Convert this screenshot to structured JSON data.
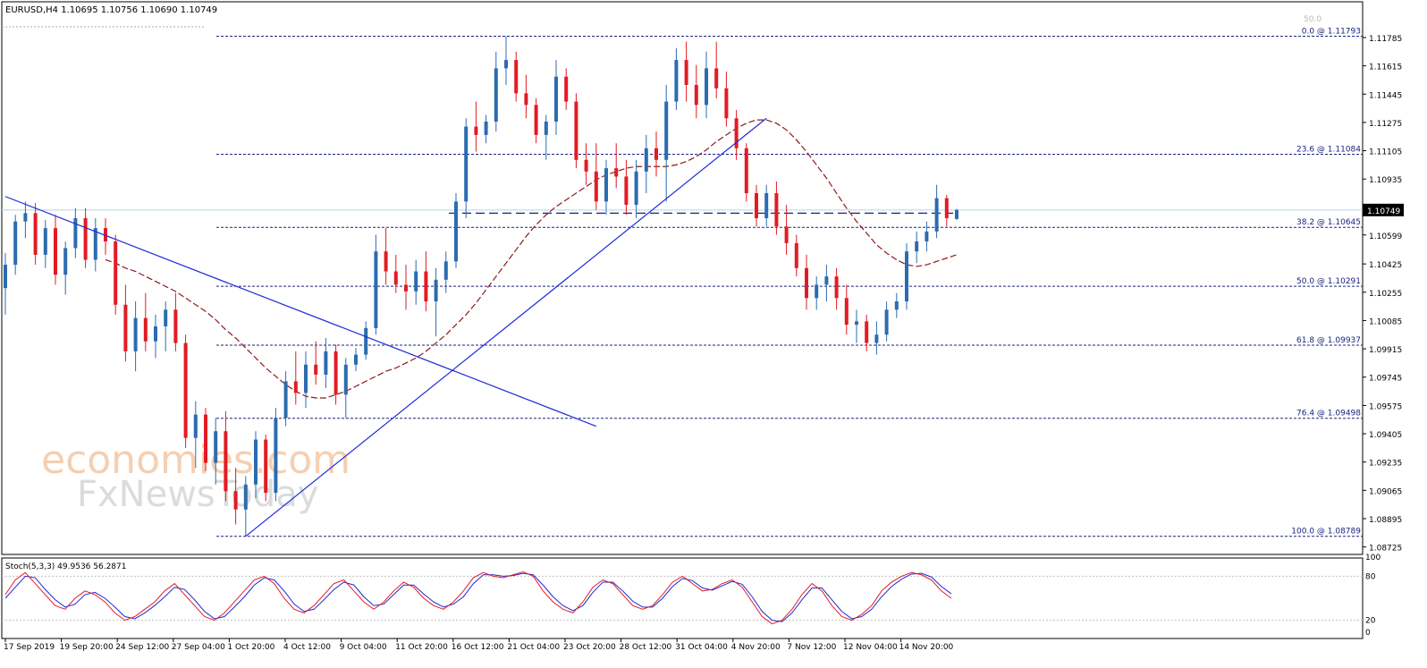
{
  "header": {
    "symbol": "EURUSD,H4",
    "ohlc": "1.10695 1.10756 1.10690 1.10749"
  },
  "watermark": {
    "line1": "economies.com",
    "line2": "FxNewsToday"
  },
  "chart_data": {
    "type": "candlestick",
    "price_axis": {
      "ylim": [
        1.0868,
        1.1186
      ],
      "ticks": [
        "1.11785",
        "1.11615",
        "1.11445",
        "1.11275",
        "1.11105",
        "1.10935",
        "1.10765",
        "1.10599",
        "1.10425",
        "1.10255",
        "1.10085",
        "1.09915",
        "1.09745",
        "1.09575",
        "1.09405",
        "1.09235",
        "1.09065",
        "1.08895",
        "1.08725"
      ],
      "current_price": "1.10749"
    },
    "time_axis": {
      "labels": [
        "17 Sep 2019",
        "19 Sep 20:00",
        "24 Sep 12:00",
        "27 Sep 04:00",
        "1 Oct 20:00",
        "4 Oct 12:00",
        "9 Oct 04:00",
        "11 Oct 20:00",
        "16 Oct 12:00",
        "21 Oct 04:00",
        "23 Oct 20:00",
        "28 Oct 12:00",
        "31 Oct 04:00",
        "4 Nov 20:00",
        "7 Nov 12:00",
        "12 Nov 04:00",
        "14 Nov 20:00"
      ]
    },
    "fibonacci": [
      {
        "label": "0.0 @ 1.11793",
        "price": 1.11793
      },
      {
        "label": "23.6 @ 1.11084",
        "price": 1.11084
      },
      {
        "label": "38.2 @ 1.10645",
        "price": 1.10645
      },
      {
        "label": "50.0 @ 1.10291",
        "price": 1.10291
      },
      {
        "label": "61.8 @ 1.09937",
        "price": 1.09937
      },
      {
        "label": "76.4 @ 1.09498",
        "price": 1.09498
      },
      {
        "label": "100.0 @ 1.08789",
        "price": 1.08789
      }
    ],
    "fib_top_ghost": "50.0",
    "horizontal_dashed_level": 1.1073,
    "candles": [
      [
        1.1028,
        1.1049,
        1.1012,
        1.1042
      ],
      [
        1.1042,
        1.1072,
        1.1036,
        1.1068
      ],
      [
        1.1068,
        1.108,
        1.1058,
        1.1073
      ],
      [
        1.1073,
        1.1079,
        1.1042,
        1.1048
      ],
      [
        1.1048,
        1.1069,
        1.104,
        1.1064
      ],
      [
        1.1064,
        1.1072,
        1.103,
        1.1036
      ],
      [
        1.1036,
        1.1056,
        1.1024,
        1.1052
      ],
      [
        1.1052,
        1.1076,
        1.1046,
        1.107
      ],
      [
        1.107,
        1.1076,
        1.104,
        1.1045
      ],
      [
        1.1045,
        1.107,
        1.1038,
        1.1064
      ],
      [
        1.1064,
        1.107,
        1.1048,
        1.1056
      ],
      [
        1.1056,
        1.106,
        1.1012,
        1.1018
      ],
      [
        1.1018,
        1.103,
        1.0984,
        1.099
      ],
      [
        1.099,
        1.102,
        1.0978,
        1.101
      ],
      [
        1.101,
        1.1025,
        1.099,
        1.0996
      ],
      [
        1.0996,
        1.1012,
        1.0986,
        1.1005
      ],
      [
        1.1005,
        1.102,
        1.099,
        1.1015
      ],
      [
        1.1015,
        1.1025,
        1.099,
        1.0995
      ],
      [
        1.0995,
        1.1,
        1.0932,
        1.0938
      ],
      [
        1.0938,
        1.096,
        1.092,
        1.0952
      ],
      [
        1.0952,
        1.0956,
        1.0918,
        1.0923
      ],
      [
        1.0923,
        1.095,
        1.091,
        1.0942
      ],
      [
        1.0942,
        1.0954,
        1.09,
        1.0906
      ],
      [
        1.0906,
        1.092,
        1.0886,
        1.0895
      ],
      [
        1.0895,
        1.0915,
        1.0879,
        1.091
      ],
      [
        1.091,
        1.0942,
        1.0902,
        1.0937
      ],
      [
        1.0937,
        1.094,
        1.09,
        1.0905
      ],
      [
        1.0905,
        1.0956,
        1.09,
        1.095
      ],
      [
        1.095,
        1.0978,
        1.0945,
        1.0972
      ],
      [
        1.0972,
        1.099,
        1.0958,
        1.0965
      ],
      [
        1.0965,
        1.099,
        1.0956,
        1.0982
      ],
      [
        1.0982,
        1.0996,
        1.097,
        1.0976
      ],
      [
        1.0976,
        1.0998,
        1.0968,
        1.099
      ],
      [
        1.099,
        1.0994,
        1.0958,
        1.0964
      ],
      [
        1.0964,
        1.0986,
        1.095,
        1.0982
      ],
      [
        1.0982,
        1.0992,
        1.0978,
        1.0988
      ],
      [
        1.0988,
        1.1008,
        1.0985,
        1.1004
      ],
      [
        1.1004,
        1.106,
        1.1,
        1.105
      ],
      [
        1.105,
        1.1064,
        1.103,
        1.1038
      ],
      [
        1.1038,
        1.1048,
        1.1025,
        1.103
      ],
      [
        1.103,
        1.1042,
        1.1015,
        1.1026
      ],
      [
        1.1026,
        1.1045,
        1.1018,
        1.1038
      ],
      [
        1.1038,
        1.105,
        1.1014,
        1.102
      ],
      [
        1.102,
        1.104,
        1.0999,
        1.1033
      ],
      [
        1.1033,
        1.105,
        1.1025,
        1.1044
      ],
      [
        1.1044,
        1.1085,
        1.104,
        1.108
      ],
      [
        1.108,
        1.113,
        1.107,
        1.1125
      ],
      [
        1.1125,
        1.114,
        1.111,
        1.112
      ],
      [
        1.112,
        1.1132,
        1.1115,
        1.1128
      ],
      [
        1.1128,
        1.117,
        1.1122,
        1.116
      ],
      [
        1.116,
        1.11793,
        1.115,
        1.1165
      ],
      [
        1.1165,
        1.117,
        1.114,
        1.1145
      ],
      [
        1.1145,
        1.1156,
        1.113,
        1.1138
      ],
      [
        1.1138,
        1.1142,
        1.1115,
        1.112
      ],
      [
        1.112,
        1.1132,
        1.1105,
        1.1128
      ],
      [
        1.1128,
        1.1165,
        1.112,
        1.1155
      ],
      [
        1.1155,
        1.116,
        1.1135,
        1.114
      ],
      [
        1.114,
        1.1145,
        1.11,
        1.1105
      ],
      [
        1.1105,
        1.1115,
        1.109,
        1.1098
      ],
      [
        1.1098,
        1.1115,
        1.1075,
        1.108
      ],
      [
        1.108,
        1.1105,
        1.1072,
        1.11
      ],
      [
        1.11,
        1.1115,
        1.1088,
        1.1095
      ],
      [
        1.1095,
        1.1105,
        1.1072,
        1.1078
      ],
      [
        1.1078,
        1.1105,
        1.107,
        1.1098
      ],
      [
        1.1098,
        1.112,
        1.1085,
        1.1112
      ],
      [
        1.1112,
        1.1122,
        1.1095,
        1.1105
      ],
      [
        1.1105,
        1.115,
        1.108,
        1.114
      ],
      [
        1.114,
        1.1172,
        1.1135,
        1.1165
      ],
      [
        1.1165,
        1.1176,
        1.114,
        1.115
      ],
      [
        1.115,
        1.1162,
        1.113,
        1.1138
      ],
      [
        1.1138,
        1.117,
        1.113,
        1.116
      ],
      [
        1.116,
        1.1176,
        1.1142,
        1.1148
      ],
      [
        1.1148,
        1.1158,
        1.1125,
        1.113
      ],
      [
        1.113,
        1.1135,
        1.1105,
        1.1112
      ],
      [
        1.1112,
        1.1115,
        1.108,
        1.1085
      ],
      [
        1.1085,
        1.109,
        1.1065,
        1.107
      ],
      [
        1.107,
        1.109,
        1.1065,
        1.1085
      ],
      [
        1.1085,
        1.1092,
        1.106,
        1.1065
      ],
      [
        1.1065,
        1.1078,
        1.1048,
        1.1055
      ],
      [
        1.1055,
        1.106,
        1.1035,
        1.104
      ],
      [
        1.104,
        1.1048,
        1.1015,
        1.1022
      ],
      [
        1.1022,
        1.1035,
        1.1015,
        1.103
      ],
      [
        1.103,
        1.1042,
        1.102,
        1.1035
      ],
      [
        1.1035,
        1.104,
        1.1015,
        1.1022
      ],
      [
        1.1022,
        1.103,
        1.1,
        1.1006
      ],
      [
        1.1006,
        1.1015,
        1.0995,
        1.1008
      ],
      [
        1.1008,
        1.1012,
        1.099,
        1.0995
      ],
      [
        1.0995,
        1.1008,
        1.0988,
        1.1
      ],
      [
        1.1,
        1.102,
        1.0996,
        1.1015
      ],
      [
        1.1015,
        1.1025,
        1.101,
        1.102
      ],
      [
        1.102,
        1.1055,
        1.1015,
        1.105
      ],
      [
        1.105,
        1.1062,
        1.1043,
        1.1056
      ],
      [
        1.1056,
        1.1068,
        1.105,
        1.1062
      ],
      [
        1.1062,
        1.109,
        1.1058,
        1.1082
      ],
      [
        1.1082,
        1.1084,
        1.1065,
        1.107
      ],
      [
        1.10695,
        1.10756,
        1.1069,
        1.10749
      ]
    ],
    "ma_values": [
      1.1045,
      1.1043,
      1.104,
      1.1038,
      1.1035,
      1.1032,
      1.1029,
      1.1026,
      1.1022,
      1.1018,
      1.1014,
      1.1009,
      1.1003,
      1.0998,
      1.0992,
      1.0986,
      1.098,
      1.0975,
      1.097,
      1.0966,
      1.0963,
      1.0962,
      1.0962,
      1.0964,
      1.0966,
      1.0969,
      1.0972,
      1.0975,
      1.0978,
      1.098,
      1.0983,
      1.0986,
      1.099,
      1.0995,
      1.1,
      1.1006,
      1.1012,
      1.1019,
      1.1027,
      1.1035,
      1.1043,
      1.1051,
      1.1059,
      1.1066,
      1.1072,
      1.1077,
      1.1081,
      1.1085,
      1.1089,
      1.1093,
      1.1096,
      1.1098,
      1.11,
      1.1101,
      1.1101,
      1.1101,
      1.1101,
      1.1102,
      1.1104,
      1.1107,
      1.1111,
      1.1116,
      1.112,
      1.1124,
      1.1127,
      1.1129,
      1.1129,
      1.1127,
      1.1123,
      1.1117,
      1.111,
      1.1102,
      1.1094,
      1.1085,
      1.1076,
      1.1068,
      1.1061,
      1.1054,
      1.1049,
      1.1045,
      1.1042,
      1.1041,
      1.1042,
      1.1044,
      1.1046,
      1.1048
    ],
    "ma_color": "#8b1a1a",
    "trendlines": [
      {
        "name": "descending",
        "color": "#1c2bd8",
        "from": {
          "candle_x": 0,
          "price": 1.1083
        },
        "to": {
          "candle_x": 59,
          "price": 1.0945
        }
      },
      {
        "name": "ascending",
        "color": "#1c2bd8",
        "from": {
          "candle_x": 24,
          "price": 1.08789
        },
        "to": {
          "candle_x": 76,
          "price": 1.113
        }
      }
    ],
    "colors": {
      "bull": "#2b6cb0",
      "bear": "#e31b23",
      "fib": "#1a237e",
      "grid_top": "#aaaaaa"
    },
    "stochastic": {
      "label": "Stoch(5,3,3) 49.9536 56.2871",
      "levels": [
        "100",
        "80",
        "20",
        "0"
      ],
      "main": [
        55,
        75,
        85,
        70,
        55,
        40,
        35,
        50,
        60,
        55,
        45,
        30,
        20,
        25,
        35,
        45,
        60,
        70,
        55,
        40,
        25,
        20,
        30,
        45,
        60,
        75,
        80,
        70,
        50,
        35,
        30,
        40,
        55,
        70,
        75,
        60,
        45,
        35,
        45,
        60,
        72,
        65,
        50,
        40,
        35,
        45,
        60,
        78,
        85,
        80,
        78,
        82,
        86,
        80,
        60,
        45,
        35,
        30,
        45,
        65,
        75,
        70,
        55,
        40,
        35,
        40,
        55,
        72,
        80,
        70,
        60,
        62,
        70,
        75,
        65,
        45,
        25,
        15,
        20,
        35,
        55,
        70,
        60,
        40,
        25,
        20,
        28,
        40,
        60,
        72,
        80,
        85,
        82,
        75,
        60,
        50
      ],
      "signal": [
        50,
        65,
        80,
        78,
        62,
        48,
        38,
        42,
        55,
        58,
        50,
        38,
        25,
        22,
        30,
        40,
        52,
        65,
        62,
        48,
        32,
        22,
        25,
        38,
        52,
        68,
        78,
        75,
        60,
        42,
        32,
        35,
        48,
        62,
        72,
        68,
        52,
        40,
        42,
        55,
        68,
        68,
        56,
        45,
        38,
        42,
        52,
        70,
        82,
        82,
        80,
        81,
        84,
        82,
        68,
        52,
        40,
        33,
        40,
        58,
        72,
        72,
        60,
        46,
        38,
        38,
        50,
        66,
        77,
        74,
        64,
        61,
        67,
        73,
        69,
        52,
        32,
        20,
        18,
        30,
        48,
        64,
        64,
        48,
        32,
        22,
        25,
        35,
        52,
        66,
        76,
        83,
        84,
        79,
        66,
        56
      ],
      "colors": {
        "main": "#e31b23",
        "signal": "#1c2bd8"
      }
    }
  }
}
